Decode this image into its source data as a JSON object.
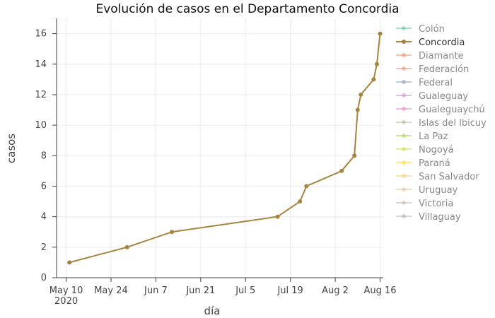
{
  "chart_data": {
    "type": "line",
    "title": "Evolución de casos en el Departamento Concordia",
    "xlabel": "día",
    "ylabel": "casos",
    "x_ticks": [
      {
        "date": "2020-05-10",
        "label": "May 10",
        "sublabel": "2020"
      },
      {
        "date": "2020-05-24",
        "label": "May 24"
      },
      {
        "date": "2020-06-07",
        "label": "Jun 7"
      },
      {
        "date": "2020-06-21",
        "label": "Jun 21"
      },
      {
        "date": "2020-07-05",
        "label": "Jul 5"
      },
      {
        "date": "2020-07-19",
        "label": "Jul 19"
      },
      {
        "date": "2020-08-02",
        "label": "Aug 2"
      },
      {
        "date": "2020-08-16",
        "label": "Aug 16"
      }
    ],
    "xlim": [
      "2020-05-07",
      "2020-08-17"
    ],
    "ylim": [
      0,
      17
    ],
    "y_ticks": [
      0,
      2,
      4,
      6,
      8,
      10,
      12,
      14,
      16
    ],
    "grid": true,
    "legend_position": "right",
    "series": [
      {
        "name": "Colón",
        "color": "#66c2a5",
        "active": false,
        "points": []
      },
      {
        "name": "Concordia",
        "color": "#a6843f",
        "active": true,
        "points": [
          {
            "x": "2020-05-11",
            "y": 1
          },
          {
            "x": "2020-05-29",
            "y": 2
          },
          {
            "x": "2020-06-12",
            "y": 3
          },
          {
            "x": "2020-07-15",
            "y": 4
          },
          {
            "x": "2020-07-22",
            "y": 5
          },
          {
            "x": "2020-07-24",
            "y": 6
          },
          {
            "x": "2020-08-04",
            "y": 7
          },
          {
            "x": "2020-08-08",
            "y": 8
          },
          {
            "x": "2020-08-09",
            "y": 11
          },
          {
            "x": "2020-08-10",
            "y": 12
          },
          {
            "x": "2020-08-14",
            "y": 13
          },
          {
            "x": "2020-08-15",
            "y": 14
          },
          {
            "x": "2020-08-16",
            "y": 16
          }
        ]
      },
      {
        "name": "Diamante",
        "color": "#fc8d62",
        "active": false,
        "points": []
      },
      {
        "name": "Federación",
        "color": "#e5907a",
        "active": false,
        "points": []
      },
      {
        "name": "Federal",
        "color": "#8da0cb",
        "active": false,
        "points": []
      },
      {
        "name": "Gualeguay",
        "color": "#c495cb",
        "active": false,
        "points": []
      },
      {
        "name": "Gualeguaychú",
        "color": "#e78ac3",
        "active": false,
        "points": []
      },
      {
        "name": "Islas del Ibicuy",
        "color": "#c3bba0",
        "active": false,
        "points": []
      },
      {
        "name": "La Paz",
        "color": "#a6d854",
        "active": false,
        "points": []
      },
      {
        "name": "Nogoyá",
        "color": "#d3e044",
        "active": false,
        "points": []
      },
      {
        "name": "Paraná",
        "color": "#ffd92f",
        "active": false,
        "points": []
      },
      {
        "name": "San Salvador",
        "color": "#f8d06e",
        "active": false,
        "points": []
      },
      {
        "name": "Uruguay",
        "color": "#e5c494",
        "active": false,
        "points": []
      },
      {
        "name": "Victoria",
        "color": "#cdbca8",
        "active": false,
        "points": []
      },
      {
        "name": "Villaguay",
        "color": "#b3b3b3",
        "active": false,
        "points": []
      }
    ]
  }
}
